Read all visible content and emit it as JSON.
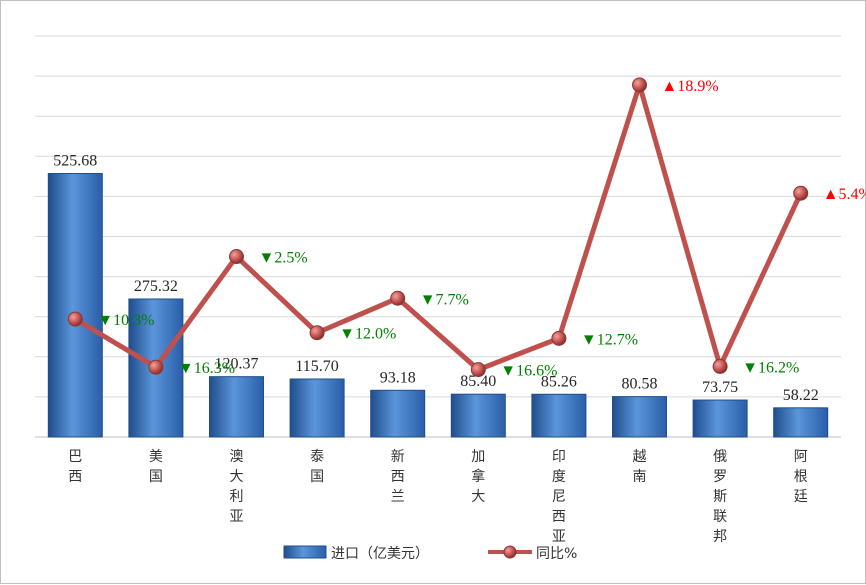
{
  "chart_data": {
    "type": "bar+line",
    "categories": [
      "巴西",
      "美国",
      "澳大利亚",
      "泰国",
      "新西兰",
      "加拿大",
      "印度尼西亚",
      "越南",
      "俄罗斯联邦",
      "阿根廷"
    ],
    "bar_series": {
      "name": "进口（亿美元）",
      "values": [
        525.68,
        275.32,
        120.37,
        115.7,
        93.18,
        85.4,
        85.26,
        80.58,
        73.75,
        58.22
      ],
      "labels": [
        "525.68",
        "275.32",
        "120.37",
        "115.70",
        "93.18",
        "85.40",
        "85.26",
        "80.58",
        "73.75",
        "58.22"
      ],
      "ylim": [
        0,
        800
      ]
    },
    "line_series": {
      "name": "同比%",
      "values": [
        -10.3,
        -16.3,
        -2.5,
        -12.0,
        -7.7,
        -16.6,
        -12.7,
        18.9,
        -16.2,
        5.4
      ],
      "labels": [
        "10.3%",
        "16.3%",
        "2.5%",
        "12.0%",
        "7.7%",
        "16.6%",
        "12.7%",
        "18.9%",
        "16.2%",
        "5.4%"
      ],
      "arrows": [
        "▼",
        "▼",
        "▼",
        "▼",
        "▼",
        "▼",
        "▼",
        "▲",
        "▼",
        "▲"
      ],
      "ylim": [
        -25,
        25
      ]
    },
    "grid": true,
    "legend": "bottom",
    "colors": {
      "bar": "#3a78c3",
      "bar_dark": "#1f4e8c",
      "line": "#c0504d",
      "up": "#ff0000",
      "down": "#008000",
      "grid": "#d9d9d9"
    }
  }
}
